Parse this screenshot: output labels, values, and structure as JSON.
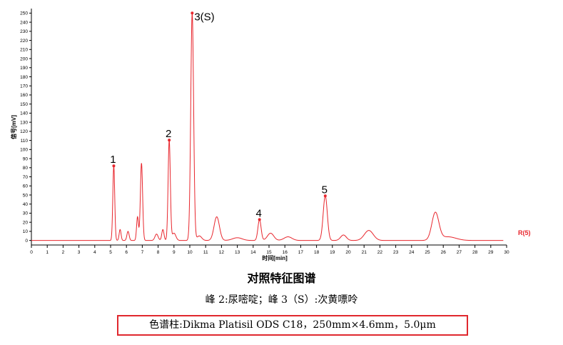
{
  "chart_data": {
    "type": "line",
    "ylabel": "信号[mV]",
    "xlabel": "时间[min]",
    "xlim": [
      0,
      30
    ],
    "ylim": [
      -5,
      255
    ],
    "x_ticks": [
      0,
      1,
      2,
      3,
      4,
      5,
      6,
      7,
      8,
      9,
      10,
      11,
      12,
      13,
      14,
      15,
      16,
      17,
      18,
      19,
      20,
      21,
      22,
      23,
      24,
      25,
      26,
      27,
      28,
      29,
      30
    ],
    "y_ticks": [
      0,
      10,
      20,
      30,
      40,
      50,
      60,
      70,
      80,
      90,
      100,
      110,
      120,
      130,
      140,
      150,
      160,
      170,
      180,
      190,
      200,
      210,
      220,
      230,
      240,
      250
    ],
    "series": [
      {
        "name": "R(5)",
        "color": "#e8262d",
        "baseline": 0,
        "peaks": [
          {
            "x": 5.2,
            "y": 82,
            "w": 0.06
          },
          {
            "x": 5.6,
            "y": 12,
            "w": 0.06
          },
          {
            "x": 6.1,
            "y": 10,
            "w": 0.07
          },
          {
            "x": 6.7,
            "y": 26,
            "w": 0.06
          },
          {
            "x": 6.95,
            "y": 85,
            "w": 0.07
          },
          {
            "x": 7.9,
            "y": 7,
            "w": 0.1
          },
          {
            "x": 8.3,
            "y": 12,
            "w": 0.07
          },
          {
            "x": 8.7,
            "y": 110,
            "w": 0.07
          },
          {
            "x": 9.0,
            "y": 8,
            "w": 0.12
          },
          {
            "x": 10.15,
            "y": 250,
            "w": 0.09
          },
          {
            "x": 10.6,
            "y": 5,
            "w": 0.15
          },
          {
            "x": 11.7,
            "y": 26,
            "w": 0.17
          },
          {
            "x": 13.0,
            "y": 3,
            "w": 0.3
          },
          {
            "x": 14.4,
            "y": 23,
            "w": 0.1
          },
          {
            "x": 15.1,
            "y": 8,
            "w": 0.2
          },
          {
            "x": 16.2,
            "y": 4,
            "w": 0.25
          },
          {
            "x": 18.55,
            "y": 49,
            "w": 0.13
          },
          {
            "x": 19.7,
            "y": 6,
            "w": 0.18
          },
          {
            "x": 21.3,
            "y": 11,
            "w": 0.28
          },
          {
            "x": 25.5,
            "y": 30,
            "w": 0.22
          },
          {
            "x": 26.3,
            "y": 4,
            "w": 0.5
          }
        ],
        "labeled_peaks": [
          {
            "label": "1",
            "x": 5.2,
            "y": 82
          },
          {
            "label": "2",
            "x": 8.7,
            "y": 110
          },
          {
            "label": "3(S)",
            "x": 10.15,
            "y": 250
          },
          {
            "label": "4",
            "x": 14.4,
            "y": 23
          },
          {
            "label": "5",
            "x": 18.55,
            "y": 49
          }
        ]
      }
    ]
  },
  "caption": {
    "title": "对照特征图谱",
    "note": "峰 2:尿嘧啶；峰 3（S）:次黄嘌呤",
    "column": "色谱柱:Dikma Platisil ODS C18，250mm×4.6mm，5.0μm"
  }
}
